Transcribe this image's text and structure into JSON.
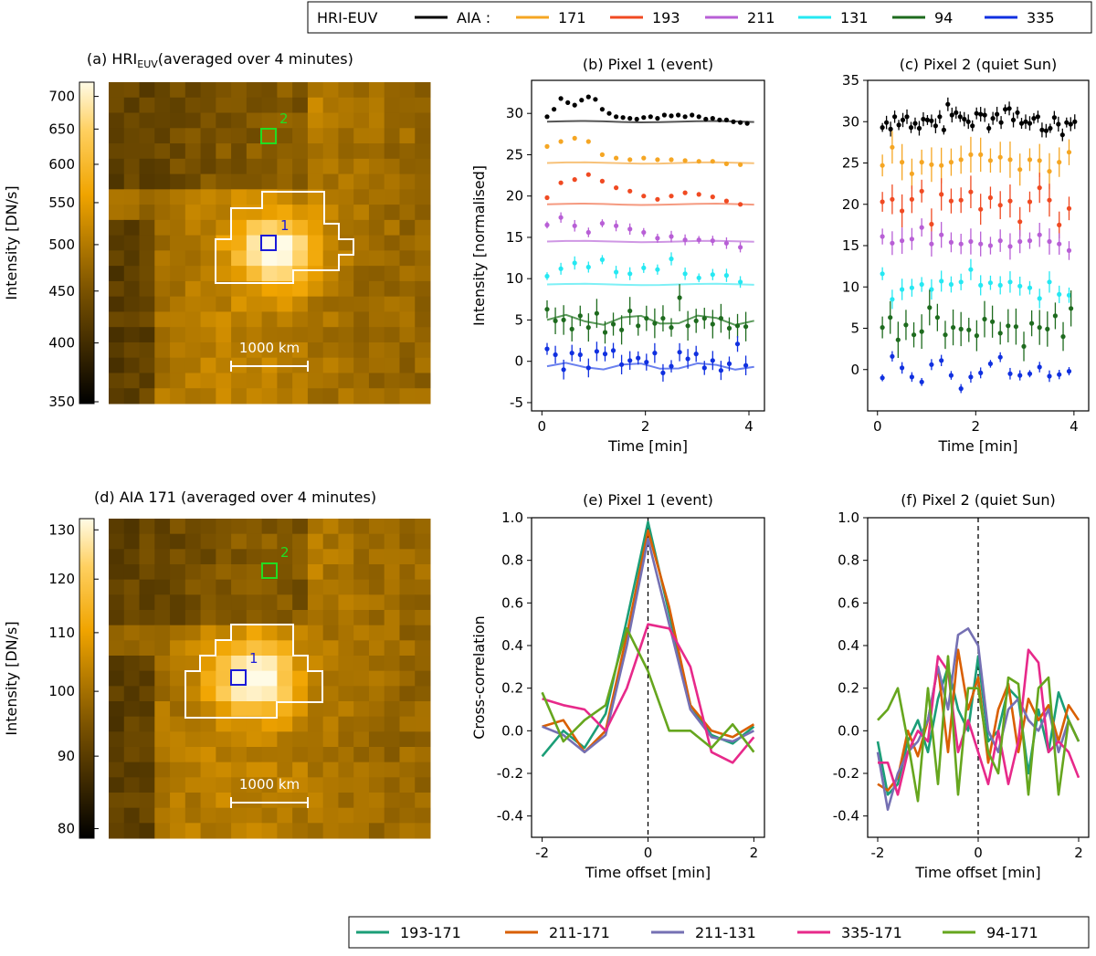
{
  "top_legend": {
    "hri_label": "HRI-EUV",
    "aia_label": "AIA :",
    "entries": [
      {
        "label": "171",
        "color": "#f5a623"
      },
      {
        "label": "193",
        "color": "#f04a22"
      },
      {
        "label": "211",
        "color": "#b85fd6"
      },
      {
        "label": "131",
        "color": "#26e8f2"
      },
      {
        "label": "94",
        "color": "#1e6b1e"
      },
      {
        "label": "335",
        "color": "#1030e0"
      }
    ]
  },
  "bottom_legend": [
    {
      "label": "193-171",
      "color": "#1b9e77"
    },
    {
      "label": "211-171",
      "color": "#d95f02"
    },
    {
      "label": "211-131",
      "color": "#7570b3"
    },
    {
      "label": "335-171",
      "color": "#e7298a"
    },
    {
      "label": "94-171",
      "color": "#66a61e"
    }
  ],
  "panel_a": {
    "title_prefix": "(a) HRI",
    "title_sub": "EUV",
    "title_suffix": "(averaged over 4 minutes)",
    "colorbar_label": "Intensity [DN/s]",
    "colorbar_ticks": [
      700,
      650,
      600,
      550,
      500,
      450,
      400,
      350
    ],
    "colorbar_range": [
      350,
      720
    ],
    "scale_label": "1000 km",
    "pixel1_label": "1",
    "pixel2_label": "2"
  },
  "panel_d": {
    "title": "(d) AIA 171 (averaged over 4 minutes)",
    "colorbar_label": "Intensity [DN/s]",
    "colorbar_ticks": [
      130,
      120,
      110,
      100,
      90,
      80
    ],
    "colorbar_range": [
      79,
      132
    ],
    "scale_label": "1000 km",
    "pixel1_label": "1",
    "pixel2_label": "2"
  },
  "chart_data": [
    {
      "id": "b",
      "type": "scatter",
      "title": "(b) Pixel 1 (event)",
      "xlabel": "Time [min]",
      "ylabel": "Intensity [normalised]",
      "xlim": [
        -0.2,
        4.3
      ],
      "ylim": [
        -6,
        34
      ],
      "xticks": [
        0,
        2,
        4
      ],
      "yticks": [
        -5,
        0,
        5,
        10,
        15,
        20,
        25,
        30
      ],
      "series": [
        {
          "name": "HRI-EUV",
          "color": "#000000",
          "fit_color": "#555555",
          "offset": 30,
          "baseline": 29.0,
          "err": 0.2,
          "values": [
            29.6,
            30.5,
            31.8,
            31.3,
            31.0,
            31.6,
            32.0,
            31.7,
            30.5,
            30.0,
            29.6,
            29.5,
            29.4,
            29.3,
            29.5,
            29.6,
            29.4,
            29.8,
            29.7,
            29.8,
            29.6,
            29.8,
            29.6,
            29.3,
            29.4,
            29.2,
            29.2,
            29.0,
            28.9,
            28.8
          ]
        },
        {
          "name": "171",
          "color": "#f5a623",
          "fit_color": "#f7c27a",
          "offset": 25,
          "baseline": 24.0,
          "err": 0.2,
          "values": [
            26.0,
            26.6,
            27.0,
            26.6,
            25.0,
            24.6,
            24.4,
            24.6,
            24.4,
            24.4,
            24.3,
            24.2,
            24.2,
            23.9,
            23.8
          ]
        },
        {
          "name": "193",
          "color": "#f04a22",
          "fit_color": "#f59a80",
          "offset": 20,
          "baseline": 19.0,
          "err": 0.2,
          "values": [
            19.8,
            21.6,
            22.0,
            22.6,
            21.8,
            21.0,
            20.6,
            20.0,
            19.6,
            20.0,
            20.4,
            20.2,
            19.9,
            19.4,
            19.0
          ]
        },
        {
          "name": "211",
          "color": "#b85fd6",
          "fit_color": "#cf97e4",
          "offset": 15,
          "baseline": 14.5,
          "err": 0.7,
          "values": [
            16.5,
            17.4,
            16.4,
            15.6,
            16.7,
            16.4,
            16.0,
            15.6,
            14.9,
            15.1,
            14.7,
            14.7,
            14.6,
            14.3,
            13.8
          ]
        },
        {
          "name": "131",
          "color": "#26e8f2",
          "fit_color": "#7ef0f6",
          "offset": 10,
          "baseline": 9.3,
          "err": 0.8,
          "values": [
            10.3,
            11.2,
            11.9,
            11.4,
            12.3,
            10.8,
            10.6,
            11.3,
            11.1,
            12.4,
            10.6,
            10.1,
            10.5,
            10.4,
            9.6
          ]
        },
        {
          "name": "94",
          "color": "#1e6b1e",
          "fit_color": "#5c9a5c",
          "offset": 5,
          "baseline": 5.0,
          "err": 1.8,
          "values": [
            6.3,
            4.9,
            5.0,
            3.9,
            5.5,
            4.1,
            5.8,
            3.5,
            4.5,
            3.8,
            6.1,
            4.3,
            5.2,
            4.6,
            5.2,
            4.1,
            7.7,
            4.3,
            4.9,
            5.2,
            4.5,
            5.2,
            4.0,
            4.3,
            4.2
          ]
        },
        {
          "name": "335",
          "color": "#1030e0",
          "fit_color": "#6a80ee",
          "offset": 0,
          "baseline": -0.6,
          "err": 1.2,
          "values": [
            1.5,
            0.8,
            -1.0,
            1.0,
            0.8,
            -0.8,
            1.2,
            0.9,
            1.3,
            -0.4,
            0.1,
            0.4,
            -0.1,
            1.0,
            -1.4,
            -0.6,
            1.1,
            0.3,
            0.9,
            -0.8,
            0.1,
            -1.1,
            -0.3,
            2.1,
            -0.5
          ]
        }
      ]
    },
    {
      "id": "c",
      "type": "scatter",
      "title": "(c) Pixel 2 (quiet Sun)",
      "xlabel": "Time [min]",
      "ylabel": "",
      "xlim": [
        -0.2,
        4.3
      ],
      "ylim": [
        -5,
        35
      ],
      "xticks": [
        0,
        2,
        4
      ],
      "yticks": [
        0,
        5,
        10,
        15,
        20,
        25,
        30,
        35
      ],
      "series": [
        {
          "name": "HRI-EUV",
          "color": "#000000",
          "offset": 30,
          "err": 0.9,
          "values": [
            29.3,
            29.9,
            29.1,
            30.6,
            29.6,
            30.2,
            30.6,
            29.3,
            29.8,
            29.2,
            30.3,
            30.2,
            30.1,
            29.5,
            30.6,
            29.0,
            32.1,
            30.8,
            31.1,
            30.6,
            30.3,
            30.0,
            29.5,
            31.0,
            30.9,
            30.8,
            29.2,
            30.4,
            30.9,
            29.9,
            31.5,
            31.6,
            30.2,
            31.1,
            29.8,
            30.0,
            29.8,
            30.4,
            30.6,
            29.0,
            28.9,
            29.2,
            30.5,
            29.7,
            28.4,
            29.9,
            29.7,
            30.0
          ]
        },
        {
          "name": "171",
          "color": "#f5a623",
          "offset": 25,
          "err": 2.2,
          "values": [
            24.7,
            26.9,
            25.1,
            23.7,
            25.1,
            24.8,
            24.7,
            25.1,
            25.4,
            26.0,
            26.0,
            25.3,
            25.7,
            25.4,
            24.2,
            25.4,
            25.3,
            24.0,
            25.1,
            26.3
          ]
        },
        {
          "name": "193",
          "color": "#f04a22",
          "offset": 20,
          "err": 2.0,
          "values": [
            20.3,
            20.6,
            19.2,
            20.6,
            21.6,
            17.6,
            21.2,
            20.4,
            20.5,
            21.5,
            19.4,
            20.8,
            19.9,
            20.4,
            17.9,
            20.3,
            22.0,
            20.5,
            17.5,
            19.5
          ]
        },
        {
          "name": "211",
          "color": "#b85fd6",
          "offset": 15,
          "err": 1.6,
          "values": [
            16.1,
            15.3,
            15.6,
            15.8,
            17.2,
            15.2,
            16.3,
            15.4,
            15.2,
            15.5,
            15.2,
            15.0,
            15.6,
            14.9,
            15.5,
            15.6,
            16.3,
            15.5,
            15.2,
            14.4
          ]
        },
        {
          "name": "131",
          "color": "#26e8f2",
          "offset": 10,
          "err": 1.3,
          "values": [
            11.6,
            8.5,
            9.7,
            9.9,
            10.3,
            9.7,
            10.7,
            10.3,
            10.6,
            12.1,
            10.2,
            10.5,
            10.2,
            10.6,
            10.1,
            9.9,
            8.6,
            10.6,
            9.1,
            9.0
          ]
        },
        {
          "name": "94",
          "color": "#1e6b1e",
          "offset": 5,
          "err": 2.2,
          "values": [
            5.1,
            6.3,
            3.6,
            5.4,
            4.2,
            4.6,
            7.5,
            6.3,
            4.2,
            5.1,
            4.9,
            4.8,
            4.1,
            6.1,
            5.8,
            4.4,
            5.3,
            5.2,
            2.8,
            5.6,
            5.1,
            4.9,
            6.5,
            4.0,
            7.4
          ]
        },
        {
          "name": "335",
          "color": "#1030e0",
          "offset": 0,
          "err": 0.7,
          "values": [
            -1.0,
            1.6,
            0.2,
            -0.9,
            -1.5,
            0.6,
            1.1,
            -0.7,
            -2.3,
            -0.9,
            -0.4,
            0.7,
            1.5,
            -0.5,
            -0.7,
            -0.5,
            0.3,
            -0.8,
            -0.6,
            -0.2
          ]
        }
      ]
    },
    {
      "id": "e",
      "type": "line",
      "title": "(e) Pixel 1 (event)",
      "xlabel": "Time offset [min]",
      "ylabel": "Cross-correlation",
      "xlim": [
        -2.2,
        2.2
      ],
      "ylim": [
        -0.5,
        1.0
      ],
      "xticks": [
        -2,
        0,
        2
      ],
      "yticks": [
        -0.4,
        -0.2,
        0.0,
        0.2,
        0.4,
        0.6,
        0.8,
        1.0
      ],
      "series": [
        {
          "name": "193-171",
          "color": "#1b9e77",
          "x": [
            -2,
            -1.6,
            -1.2,
            -0.8,
            -0.4,
            0,
            0.4,
            0.8,
            1.2,
            1.6,
            2
          ],
          "y": [
            -0.12,
            0.0,
            -0.08,
            0.08,
            0.52,
            0.98,
            0.55,
            0.12,
            -0.02,
            -0.06,
            0.02
          ]
        },
        {
          "name": "211-171",
          "color": "#d95f02",
          "x": [
            -2,
            -1.6,
            -1.2,
            -0.8,
            -0.4,
            0,
            0.4,
            0.8,
            1.2,
            1.6,
            2
          ],
          "y": [
            0.02,
            0.05,
            -0.1,
            0.0,
            0.45,
            0.94,
            0.58,
            0.12,
            0.0,
            -0.03,
            0.03
          ]
        },
        {
          "name": "211-131",
          "color": "#7570b3",
          "x": [
            -2,
            -1.6,
            -1.2,
            -0.8,
            -0.4,
            0,
            0.4,
            0.8,
            1.2,
            1.6,
            2
          ],
          "y": [
            0.02,
            -0.02,
            -0.1,
            -0.02,
            0.4,
            0.9,
            0.5,
            0.1,
            -0.03,
            -0.05,
            0.0
          ]
        },
        {
          "name": "335-171",
          "color": "#e7298a",
          "x": [
            -2,
            -1.6,
            -1.2,
            -0.8,
            -0.4,
            0,
            0.4,
            0.8,
            1.2,
            1.6,
            2
          ],
          "y": [
            0.15,
            0.12,
            0.1,
            0.0,
            0.2,
            0.5,
            0.48,
            0.3,
            -0.1,
            -0.15,
            -0.03
          ]
        },
        {
          "name": "94-171",
          "color": "#66a61e",
          "x": [
            -2,
            -1.6,
            -1.2,
            -0.8,
            -0.4,
            0,
            0.4,
            0.8,
            1.2,
            1.6,
            2
          ],
          "y": [
            0.18,
            -0.05,
            0.05,
            0.12,
            0.48,
            0.28,
            0.0,
            0.0,
            -0.08,
            0.03,
            -0.1
          ]
        }
      ]
    },
    {
      "id": "f",
      "type": "line",
      "title": "(f) Pixel 2 (quiet Sun)",
      "xlabel": "Time offset [min]",
      "ylabel": "",
      "xlim": [
        -2.2,
        2.2
      ],
      "ylim": [
        -0.5,
        1.0
      ],
      "xticks": [
        -2,
        0,
        2
      ],
      "yticks": [
        -0.4,
        -0.2,
        0.0,
        0.2,
        0.4,
        0.6,
        0.8,
        1.0
      ],
      "series": [
        {
          "name": "193-171",
          "color": "#1b9e77",
          "x": [
            -2,
            -1.8,
            -1.6,
            -1.4,
            -1.2,
            -1.0,
            -0.8,
            -0.6,
            -0.4,
            -0.2,
            0,
            0.2,
            0.4,
            0.6,
            0.8,
            1.0,
            1.2,
            1.4,
            1.6,
            1.8,
            2
          ],
          "y": [
            -0.05,
            -0.3,
            -0.25,
            -0.05,
            0.05,
            -0.1,
            0.15,
            0.3,
            0.1,
            0.0,
            0.35,
            -0.05,
            0.0,
            0.2,
            0.15,
            -0.2,
            0.1,
            -0.1,
            0.18,
            0.05,
            -0.05
          ]
        },
        {
          "name": "211-171",
          "color": "#d95f02",
          "x": [
            -2,
            -1.8,
            -1.6,
            -1.4,
            -1.2,
            -1.0,
            -0.8,
            -0.6,
            -0.4,
            -0.2,
            0,
            0.2,
            0.4,
            0.6,
            0.8,
            1.0,
            1.2,
            1.4,
            1.6,
            1.8,
            2
          ],
          "y": [
            -0.25,
            -0.28,
            -0.22,
            0.0,
            -0.12,
            0.05,
            0.3,
            -0.1,
            0.38,
            0.1,
            0.25,
            -0.15,
            0.1,
            0.22,
            -0.1,
            0.15,
            0.05,
            0.12,
            -0.05,
            0.12,
            0.05
          ]
        },
        {
          "name": "211-131",
          "color": "#7570b3",
          "x": [
            -2,
            -1.8,
            -1.6,
            -1.4,
            -1.2,
            -1.0,
            -0.8,
            -0.6,
            -0.4,
            -0.2,
            0,
            0.2,
            0.4,
            0.6,
            0.8,
            1.0,
            1.2,
            1.4,
            1.6,
            1.8,
            2
          ],
          "y": [
            -0.1,
            -0.37,
            -0.2,
            -0.1,
            -0.05,
            0.05,
            0.3,
            0.1,
            0.45,
            0.48,
            0.4,
            0.0,
            -0.1,
            0.1,
            0.15,
            0.05,
            0.0,
            0.1,
            -0.1,
            0.05,
            -0.05
          ]
        },
        {
          "name": "335-171",
          "color": "#e7298a",
          "x": [
            -2,
            -1.8,
            -1.6,
            -1.4,
            -1.2,
            -1.0,
            -0.8,
            -0.6,
            -0.4,
            -0.2,
            0,
            0.2,
            0.4,
            0.6,
            0.8,
            1.0,
            1.2,
            1.4,
            1.6,
            1.8,
            2
          ],
          "y": [
            -0.15,
            -0.15,
            -0.3,
            -0.1,
            0.0,
            -0.05,
            0.35,
            0.28,
            -0.1,
            0.05,
            -0.1,
            -0.25,
            0.0,
            -0.25,
            -0.05,
            0.38,
            0.32,
            -0.1,
            -0.05,
            -0.1,
            -0.22
          ]
        },
        {
          "name": "94-171",
          "color": "#66a61e",
          "x": [
            -2,
            -1.8,
            -1.6,
            -1.4,
            -1.2,
            -1.0,
            -0.8,
            -0.6,
            -0.4,
            -0.2,
            0,
            0.2,
            0.4,
            0.6,
            0.8,
            1.0,
            1.2,
            1.4,
            1.6,
            1.8,
            2
          ],
          "y": [
            0.05,
            0.1,
            0.2,
            -0.05,
            -0.33,
            0.2,
            -0.25,
            0.35,
            -0.3,
            0.2,
            0.2,
            -0.1,
            -0.2,
            0.25,
            0.22,
            -0.3,
            0.2,
            0.25,
            -0.3,
            0.05,
            -0.05
          ]
        }
      ]
    }
  ]
}
